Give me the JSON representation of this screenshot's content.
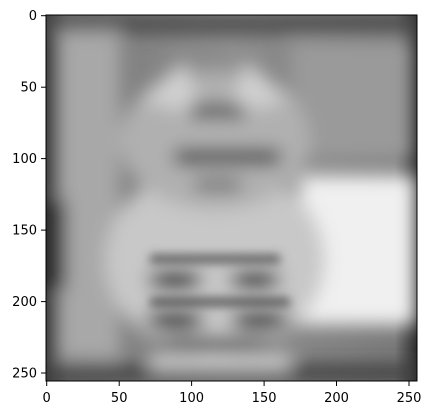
{
  "chart_data": {
    "type": "heatmap",
    "title": "",
    "xlabel": "",
    "ylabel": "",
    "colormap": "gray",
    "grid": false,
    "legend": "none",
    "image_shape": [
      256,
      256
    ],
    "xlim": [
      0,
      256
    ],
    "ylim": [
      256,
      0
    ],
    "x_ticks": [
      0,
      50,
      100,
      150,
      200,
      250
    ],
    "y_ticks": [
      0,
      50,
      100,
      150,
      200,
      250
    ],
    "x_tick_labels": [
      "0",
      "50",
      "100",
      "150",
      "200",
      "250"
    ],
    "y_tick_labels": [
      "0",
      "50",
      "100",
      "150",
      "200",
      "250"
    ]
  }
}
